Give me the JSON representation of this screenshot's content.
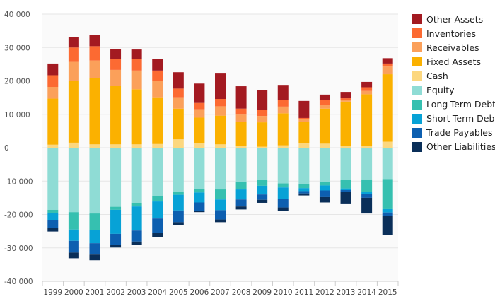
{
  "chart_data": {
    "type": "bar",
    "stacked": true,
    "categories": [
      "1999",
      "2000",
      "2001",
      "2002",
      "2003",
      "2004",
      "2005",
      "2006",
      "2007",
      "2008",
      "2009",
      "2010",
      "2011",
      "2012",
      "2013",
      "2014",
      "2015"
    ],
    "ylim": [
      -40000,
      40000
    ],
    "yticks": [
      40000,
      30000,
      20000,
      10000,
      0,
      -10000,
      -20000,
      -30000,
      -40000
    ],
    "ytick_labels": [
      "40 000",
      "30 000",
      "20 000",
      "10 000",
      "0",
      "-10 000",
      "-20 000",
      "-30 000",
      "-40 000"
    ],
    "grid": true,
    "legend_position": "right",
    "series": [
      {
        "name": "Cash",
        "side": "assets",
        "color": "#fcd77f",
        "values": [
          900,
          1500,
          1000,
          1000,
          1000,
          1100,
          2500,
          1300,
          1000,
          600,
          300,
          700,
          1300,
          1200,
          500,
          500,
          1800
        ]
      },
      {
        "name": "Fixed Assets",
        "side": "assets",
        "color": "#fbb100",
        "values": [
          13800,
          18500,
          19800,
          17500,
          16500,
          14000,
          9200,
          7700,
          8600,
          7200,
          7300,
          9600,
          6500,
          10500,
          13300,
          15500,
          20200
        ]
      },
      {
        "name": "Receivables",
        "side": "assets",
        "color": "#fba05a",
        "values": [
          3500,
          5700,
          5300,
          4800,
          5600,
          4800,
          3400,
          2500,
          2800,
          2100,
          1900,
          2000,
          700,
          1200,
          500,
          1000,
          2300
        ]
      },
      {
        "name": "Inventories",
        "side": "assets",
        "color": "#fc6a32",
        "values": [
          3500,
          4300,
          4300,
          3200,
          3500,
          3200,
          2600,
          1900,
          2200,
          1800,
          1800,
          2000,
          400,
          1300,
          500,
          1100,
          900
        ]
      },
      {
        "name": "Other Assets",
        "side": "assets",
        "color": "#a31a21",
        "values": [
          3500,
          3100,
          3300,
          3000,
          2800,
          3500,
          4900,
          5800,
          7600,
          6700,
          5900,
          4500,
          5100,
          1700,
          1900,
          1600,
          1600
        ]
      },
      {
        "name": "Equity",
        "side": "liabilities",
        "color": "#8fdcd5",
        "values": [
          -18600,
          -19300,
          -19700,
          -17700,
          -16500,
          -14400,
          -13200,
          -12400,
          -12500,
          -10300,
          -9600,
          -10700,
          -10900,
          -10300,
          -9700,
          -9500,
          -9400
        ]
      },
      {
        "name": "Long-Term Debt",
        "side": "liabilities",
        "color": "#36c0b0",
        "values": [
          -900,
          -5200,
          -5000,
          -900,
          -1100,
          -1700,
          -900,
          -1000,
          -3000,
          -2200,
          -1800,
          -1200,
          -1200,
          -1000,
          -2500,
          -3700,
          -9000
        ]
      },
      {
        "name": "Short-Term Debt",
        "side": "liabilities",
        "color": "#07a2d6",
        "values": [
          -2100,
          -3400,
          -3900,
          -7200,
          -7200,
          -5100,
          -4700,
          -3000,
          -3200,
          -3000,
          -2600,
          -3500,
          -900,
          -1500,
          -500,
          -700,
          -1000
        ]
      },
      {
        "name": "Trade Payables",
        "side": "liabilities",
        "color": "#0d5fb0",
        "values": [
          -2400,
          -3500,
          -3400,
          -3400,
          -3300,
          -4400,
          -3500,
          -2500,
          -2800,
          -2100,
          -1600,
          -2500,
          -700,
          -2000,
          -600,
          -1100,
          -1000
        ]
      },
      {
        "name": "Other Liabilities",
        "side": "liabilities",
        "color": "#0a2f59",
        "values": [
          -1100,
          -1700,
          -1700,
          -700,
          -1100,
          -1100,
          -800,
          -400,
          -800,
          -900,
          -900,
          -1100,
          -600,
          -1600,
          -3400,
          -4700,
          -5800
        ]
      }
    ],
    "legend_order": [
      "Other Assets",
      "Inventories",
      "Receivables",
      "Fixed Assets",
      "Cash",
      "Equity",
      "Long-Term Debt",
      "Short-Term Debt",
      "Trade Payables",
      "Other Liabilities"
    ],
    "colors": {
      "grid": "#e6e6e6",
      "axis": "#cccccc",
      "plot_bg": "#fafafa",
      "tick_text": "#555555"
    }
  }
}
